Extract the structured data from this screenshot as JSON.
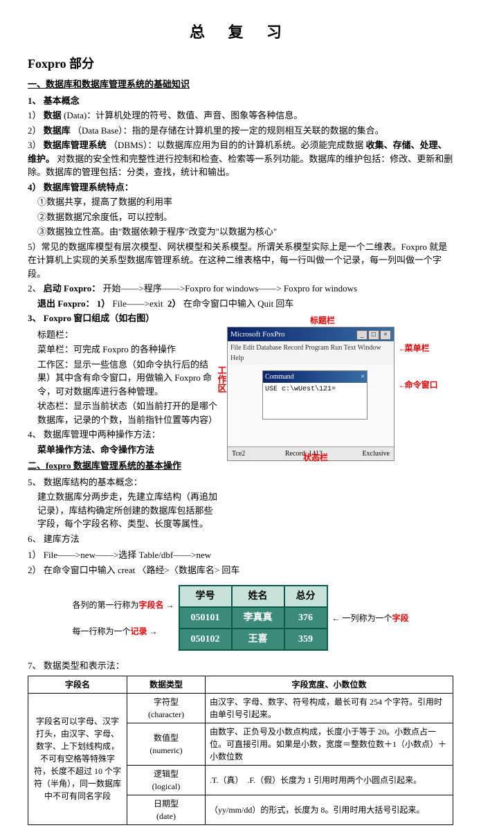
{
  "title": "总 复 习",
  "section": "Foxpro 部分",
  "s1": {
    "h": "一、数据库和数据库管理系统的基础知识",
    "h1": "1、 基本概念",
    "i1a": "1）",
    "i1b": "数据",
    "i1c": "(Data)：计算机处理的符号、数值、声音、图象等各种信息。",
    "i2a": "2）",
    "i2b": "数据库",
    "i2c": "（Data Base）：指的是存储在计算机里的按一定的规则相互关联的数据的集合。",
    "i3a": "3）",
    "i3b": "数据库管理系统",
    "i3c": "（DBMS）：以数据库应用为目的的计算机系统。必须能完成数据",
    "i3d": "收集、存储、处理、维护。",
    "i3e": "对数据的安全性和完整性进行控制和检查、检索等一系列功能。数据库的维护包括：修改、更新和删除。数据库的管理包括：分类，查找，统计和输出。",
    "h4": "4） 数据库管理系统特点：",
    "p4a": "①数据共享，提高了数据的利用率",
    "p4b": "②数据数据冗余度低，可以控制。",
    "p4c": "③数据独立性高。由\"数据依赖于程序\"改变为\"以数据为核心\"",
    "p5": "5）常见的数据库模型有层次模型、网状模型和关系模型。所谓关系模型实际上是一个二维表。Foxpro 就是在计算机上实现的关系型数据库管理系统。在这种二维表格中，每一行叫做一个记录，每一列叫做一个字段。",
    "p6a": "2、",
    "p6b": "启动 Foxpro：",
    "p6c": "开始——>程序——>Foxpro for windows——> Foxpro for windows",
    "p7a": "退出 Foxpro：",
    "p7b": "1）",
    "p7c": "File——>exit",
    "p7d": "2）",
    "p7e": "在命令窗口中输入 Quit 回车"
  },
  "s3": {
    "h": "3、 Foxpro 窗口组成（如右图）",
    "p1": "标题栏：",
    "p2": "菜单栏：可完成 Foxpro 的各种操作",
    "p3": "工作区：显示一些信息（如命令执行后的结果）其中含有命令窗口，用做输入 Foxpro 命令，可对数据库进行各种管理。",
    "p4": "状态栏：显示当前状态（如当前打开的是哪个数据库，记录的个数，当前指针位置等内容）",
    "p5": "4、 数据库管理中两种操作方法：",
    "p5b": "菜单操作方法、命令操作方法",
    "h2": "二、foxpro 数据库管理系统的基本操作",
    "p6": "5、 数据库结构的基本概念：",
    "p7": "建立数据库分两步走，先建立库结构（再追加记录），库结构确定所创建的数据库包括那些字段，每个字段名称、类型、长度等属性。",
    "p8": "6、 建库方法",
    "p9": "1） File——>new——>选择 Table/dbf——>new",
    "p10": "2） 在命令窗口中输入 creat 〈路经>〈数据库名> 回车"
  },
  "fp": {
    "title": "Microsoft FoxPro",
    "menu": "File Edit Database Record Program Run Text Window Help",
    "cmd_title": "Command",
    "cmd_text": "USE c:\\wUest\\121=",
    "status_left": "Tce2",
    "status_mid": "Record: 1413",
    "status_right": "Exclusive",
    "annot_titlebar": "标题栏",
    "annot_menubar": "菜单栏",
    "annot_cmd": "命令窗口",
    "annot_workarea": "工作区",
    "annot_status": "状态栏"
  },
  "stu": {
    "left1": "各列的第一行称为",
    "left1b": "字段名",
    "left2": "每一行称为一个",
    "left2b": "记录",
    "right1": "一列称为一个",
    "right1b": "字段",
    "headers": [
      "学号",
      "姓名",
      "总分"
    ],
    "rows": [
      [
        "050101",
        "李真真",
        "376"
      ],
      [
        "050102",
        "王喜",
        "359"
      ]
    ]
  },
  "s7": {
    "h": "7、 数据类型和表示法：",
    "col1": "字段名",
    "col2": "数据类型",
    "col3": "字段宽度、小数位数",
    "fieldname_text": "字段名可以字母、汉字打头，由汉字、字母、数字、上下划线构成，不可有空格等特殊字符，长度不超过 10 个字符（半角），同一数据库中不可有同名字段",
    "r1": {
      "type": "字符型\n(character)",
      "desc": "由汉字、字母、数字、符号构成，最长可有 254 个字符。引用时由单引号引起来。"
    },
    "r2": {
      "type": "数值型\n(numeric)",
      "desc": "由数字、正负号及小数点构成，长度小于等于 20。小数点占一位。可直接引用。如果是小数，宽度＝整数位数＋1（小数点）＋小数位数"
    },
    "r3": {
      "type": "逻辑型\n(logical)",
      "desc": ".T.（真）　.F.（假）长度为 1 引用时用两个小圆点引起来。"
    },
    "r4": {
      "type": "日期型\n(date)",
      "desc": "（yy/mm/dd）的形式，长度为 8。引用时用大括号引起来。"
    }
  }
}
